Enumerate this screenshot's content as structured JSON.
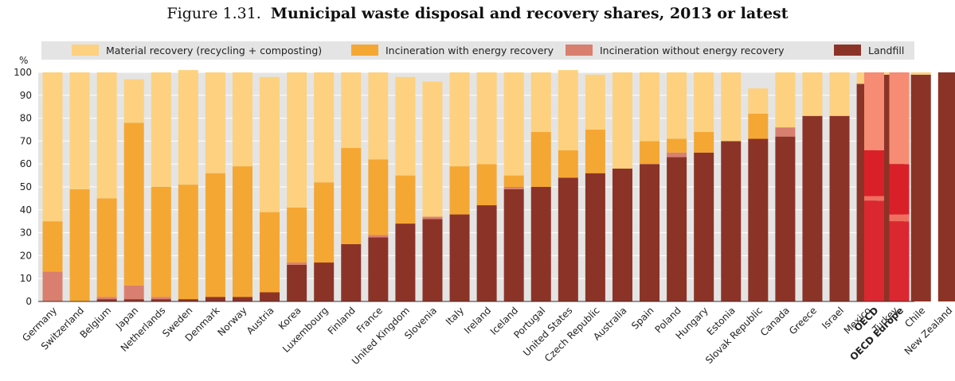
{
  "title_number": "Figure 1.31.",
  "title_text": "Municipal waste disposal and recovery shares, 2013 or latest",
  "chart_data": {
    "type": "bar",
    "stacked": true,
    "title": "Municipal waste disposal and recovery shares, 2013 or latest",
    "ylabel": "%",
    "ylim": [
      0,
      100
    ],
    "yticks": [
      0,
      10,
      20,
      30,
      40,
      50,
      60,
      70,
      80,
      90,
      100
    ],
    "grid": true,
    "legend_position": "top",
    "categories": [
      "Germany",
      "Switzerland",
      "Belgium",
      "Japan",
      "Netherlands",
      "Sweden",
      "Denmark",
      "Norway",
      "Austria",
      "Korea",
      "Luxembourg",
      "Finland",
      "France",
      "United Kingdom",
      "Slovenia",
      "Italy",
      "Ireland",
      "Iceland",
      "Portugal",
      "United States",
      "Czech Republic",
      "Australia",
      "Spain",
      "Poland",
      "Hungary",
      "Estonia",
      "Slovak Republic",
      "Canada",
      "Greece",
      "Israel",
      "Mexico",
      "Turkey",
      "Chile",
      "New Zealand",
      "OECD",
      "OECD Europe"
    ],
    "aggregate_categories": [
      "OECD",
      "OECD Europe"
    ],
    "series": [
      {
        "name": "Landfill",
        "color": "#8c3328",
        "aggregate_color": "#db2730",
        "values": [
          0,
          0,
          1,
          1,
          1,
          1,
          2,
          2,
          4,
          16,
          17,
          25,
          28,
          34,
          36,
          38,
          42,
          49,
          50,
          54,
          56,
          58,
          60,
          63,
          65,
          70,
          71,
          72,
          81,
          81,
          95,
          99,
          99,
          100,
          44,
          35
        ]
      },
      {
        "name": "Incineration without energy recovery",
        "color": "#d97f6f",
        "aggregate_color": "#ef6f60",
        "values": [
          13,
          0,
          1,
          6,
          1,
          0,
          0,
          0,
          0,
          1,
          0,
          0,
          1,
          0,
          1,
          0,
          0,
          1,
          0,
          0,
          0,
          0,
          0,
          2,
          0,
          0,
          0,
          4,
          0,
          0,
          0,
          0,
          0,
          0,
          2,
          3
        ]
      },
      {
        "name": "Incineration with energy recovery",
        "color": "#f5a733",
        "aggregate_color": "#d92028",
        "values": [
          22,
          49,
          43,
          71,
          48,
          50,
          54,
          57,
          35,
          24,
          35,
          42,
          33,
          21,
          0,
          21,
          18,
          5,
          24,
          12,
          19,
          0,
          10,
          6,
          9,
          0,
          11,
          0,
          0,
          0,
          0,
          0,
          0,
          0,
          20,
          22
        ]
      },
      {
        "name": "Material recovery (recycling + composting)",
        "color": "#fdd17f",
        "aggregate_color": "#f58c73",
        "values": [
          65,
          51,
          55,
          19,
          50,
          50,
          44,
          41,
          59,
          59,
          48,
          33,
          38,
          43,
          59,
          41,
          40,
          45,
          26,
          35,
          24,
          42,
          30,
          29,
          26,
          30,
          11,
          24,
          19,
          19,
          5,
          1,
          1,
          0,
          34,
          40
        ]
      }
    ]
  }
}
